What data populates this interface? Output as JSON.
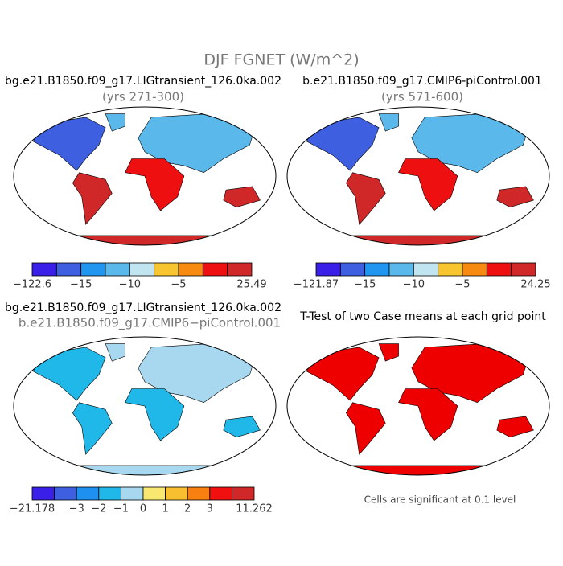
{
  "title": "DJF FGNET (W/m^2)",
  "panels": [
    {
      "title": "bg.e21.B1850.f09_g17.LIGtransient_126.0ka.002",
      "subtitle": "(yrs 271-300)",
      "colorbar": {
        "colors": [
          "#3a1fe8",
          "#3d5fe0",
          "#2196f0",
          "#5ab8ea",
          "#c0e4f0",
          "#f7c530",
          "#f78a10",
          "#ee1010",
          "#d02828"
        ],
        "labels": [
          "−122.6",
          "−15",
          "−10",
          "−5",
          "25.49"
        ]
      }
    },
    {
      "title": "b.e21.B1850.f09_g17.CMIP6-piControl.001",
      "subtitle": "(yrs 571-600)",
      "colorbar": {
        "colors": [
          "#3a1fe8",
          "#3d5fe0",
          "#2196f0",
          "#5ab8ea",
          "#c0e4f0",
          "#f7c530",
          "#f78a10",
          "#ee1010",
          "#d02828"
        ],
        "labels": [
          "−121.87",
          "−15",
          "−10",
          "−5",
          "24.25"
        ]
      }
    },
    {
      "title": "bg.e21.B1850.f09_g17.LIGtransient_126.0ka.002",
      "subtitle": "b.e21.B1850.f09_g17.CMIP6−piControl.001",
      "colorbar": {
        "colors": [
          "#3a1fe8",
          "#3d5fe0",
          "#1e90f0",
          "#20b8e8",
          "#a8d8f0",
          "#f8e870",
          "#f8c030",
          "#f88010",
          "#f01010",
          "#d02828"
        ],
        "labels": [
          "−21.178",
          "−3",
          "−2",
          "−1",
          "0",
          "1",
          "2",
          "3",
          "11.262"
        ]
      }
    },
    {
      "title": "T-Test of two Case means at each grid point"
    }
  ],
  "footnote": "Cells are significant at 0.1 level"
}
